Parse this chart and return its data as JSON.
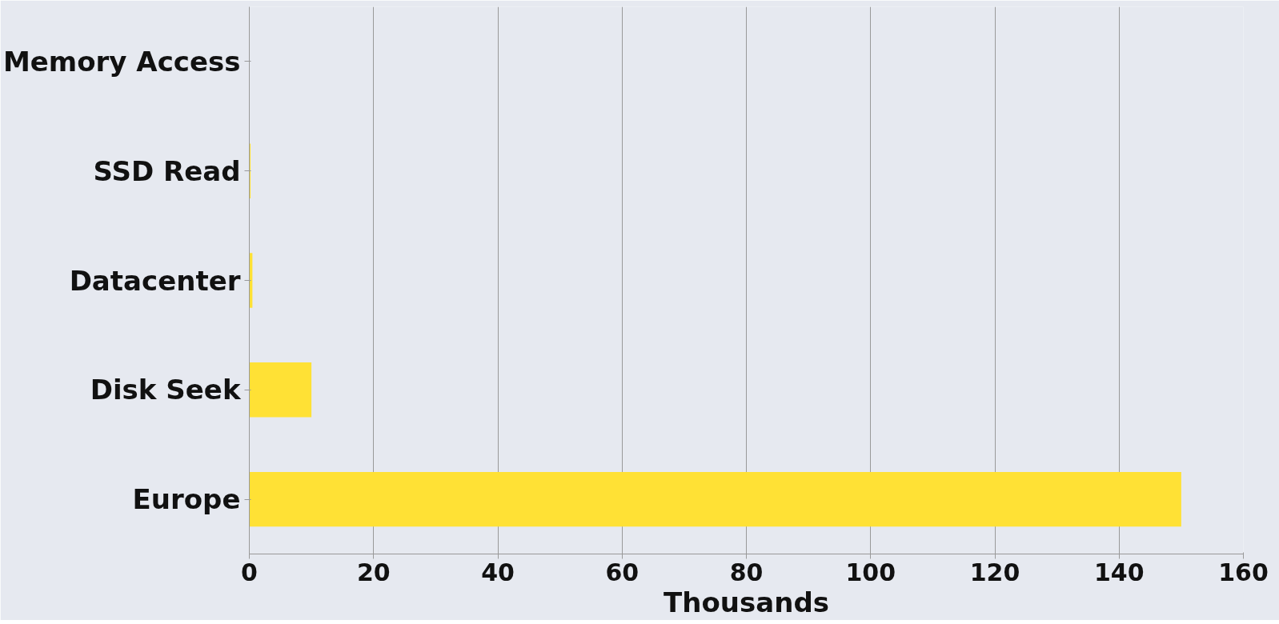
{
  "chart_data": {
    "type": "bar",
    "orientation": "horizontal",
    "categories": [
      "Memory Access",
      "SSD Read",
      "Datacenter",
      "Disk Seek",
      "Europe"
    ],
    "values": [
      0,
      0.2,
      0.5,
      10,
      150
    ],
    "color": "#ffe135",
    "xlim": [
      0,
      160
    ],
    "xticks": [
      0,
      20,
      40,
      60,
      80,
      100,
      120,
      140,
      160
    ],
    "xlabel": "Thousands",
    "grid": "x"
  }
}
